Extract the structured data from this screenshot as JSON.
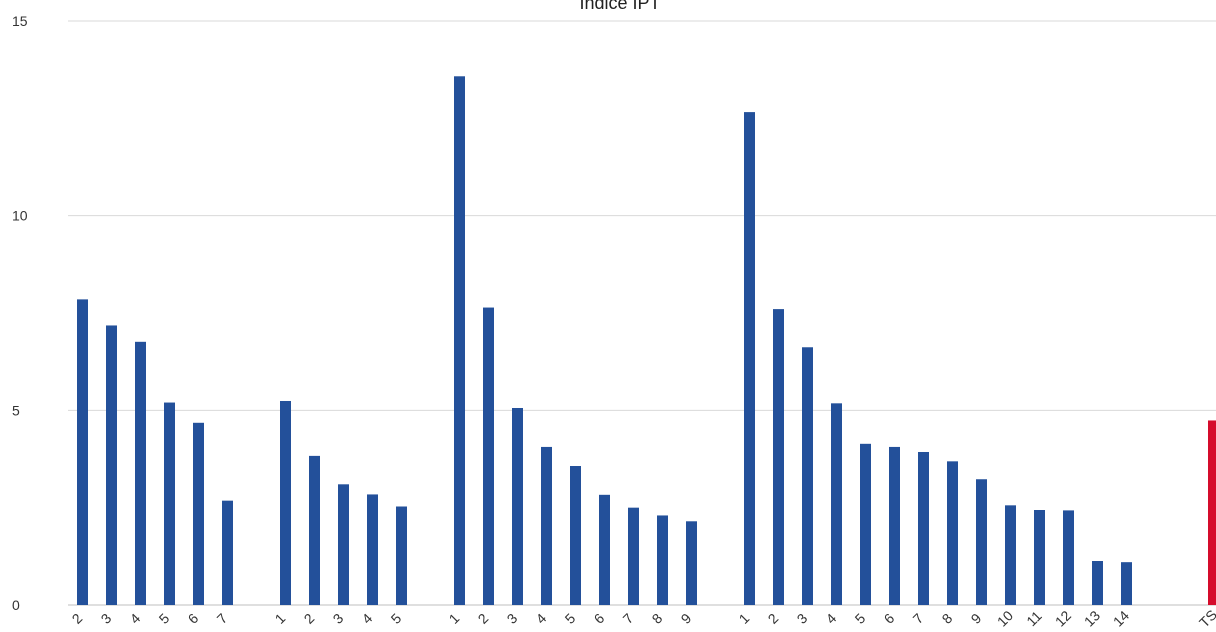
{
  "chart_data": {
    "type": "bar",
    "title": "Indice IPT",
    "xlabel": "",
    "ylabel": "",
    "ylim": [
      0,
      15
    ],
    "yticks": [
      0,
      5,
      10,
      15
    ],
    "grid": true,
    "legend": "none",
    "colors": {
      "primary": "#23509a",
      "highlight": "#d50c2b"
    },
    "bars": [
      {
        "label": "2",
        "value": 7.85
      },
      {
        "label": "3",
        "value": 7.18
      },
      {
        "label": "4",
        "value": 6.76
      },
      {
        "label": "5",
        "value": 5.2
      },
      {
        "label": "6",
        "value": 4.68
      },
      {
        "label": "7",
        "value": 2.68
      },
      {
        "label": "",
        "value": null
      },
      {
        "label": "1",
        "value": 5.24
      },
      {
        "label": "2",
        "value": 3.83
      },
      {
        "label": "3",
        "value": 3.1
      },
      {
        "label": "4",
        "value": 2.84
      },
      {
        "label": "5",
        "value": 2.53
      },
      {
        "label": "",
        "value": null
      },
      {
        "label": "1",
        "value": 13.58
      },
      {
        "label": "2",
        "value": 7.64
      },
      {
        "label": "3",
        "value": 5.06
      },
      {
        "label": "4",
        "value": 4.06
      },
      {
        "label": "5",
        "value": 3.57
      },
      {
        "label": "6",
        "value": 2.83
      },
      {
        "label": "7",
        "value": 2.5
      },
      {
        "label": "8",
        "value": 2.3
      },
      {
        "label": "9",
        "value": 2.15
      },
      {
        "label": "",
        "value": null
      },
      {
        "label": "1",
        "value": 12.66
      },
      {
        "label": "2",
        "value": 7.6
      },
      {
        "label": "3",
        "value": 6.62
      },
      {
        "label": "4",
        "value": 5.18
      },
      {
        "label": "5",
        "value": 4.14
      },
      {
        "label": "6",
        "value": 4.06
      },
      {
        "label": "7",
        "value": 3.93
      },
      {
        "label": "8",
        "value": 3.69
      },
      {
        "label": "9",
        "value": 3.23
      },
      {
        "label": "10",
        "value": 2.56
      },
      {
        "label": "11",
        "value": 2.44
      },
      {
        "label": "12",
        "value": 2.43
      },
      {
        "label": "13",
        "value": 1.13
      },
      {
        "label": "14",
        "value": 1.1
      },
      {
        "label": "",
        "value": null
      },
      {
        "label": "",
        "value": null
      },
      {
        "label": "TS",
        "value": 4.74,
        "highlight": true
      }
    ]
  }
}
